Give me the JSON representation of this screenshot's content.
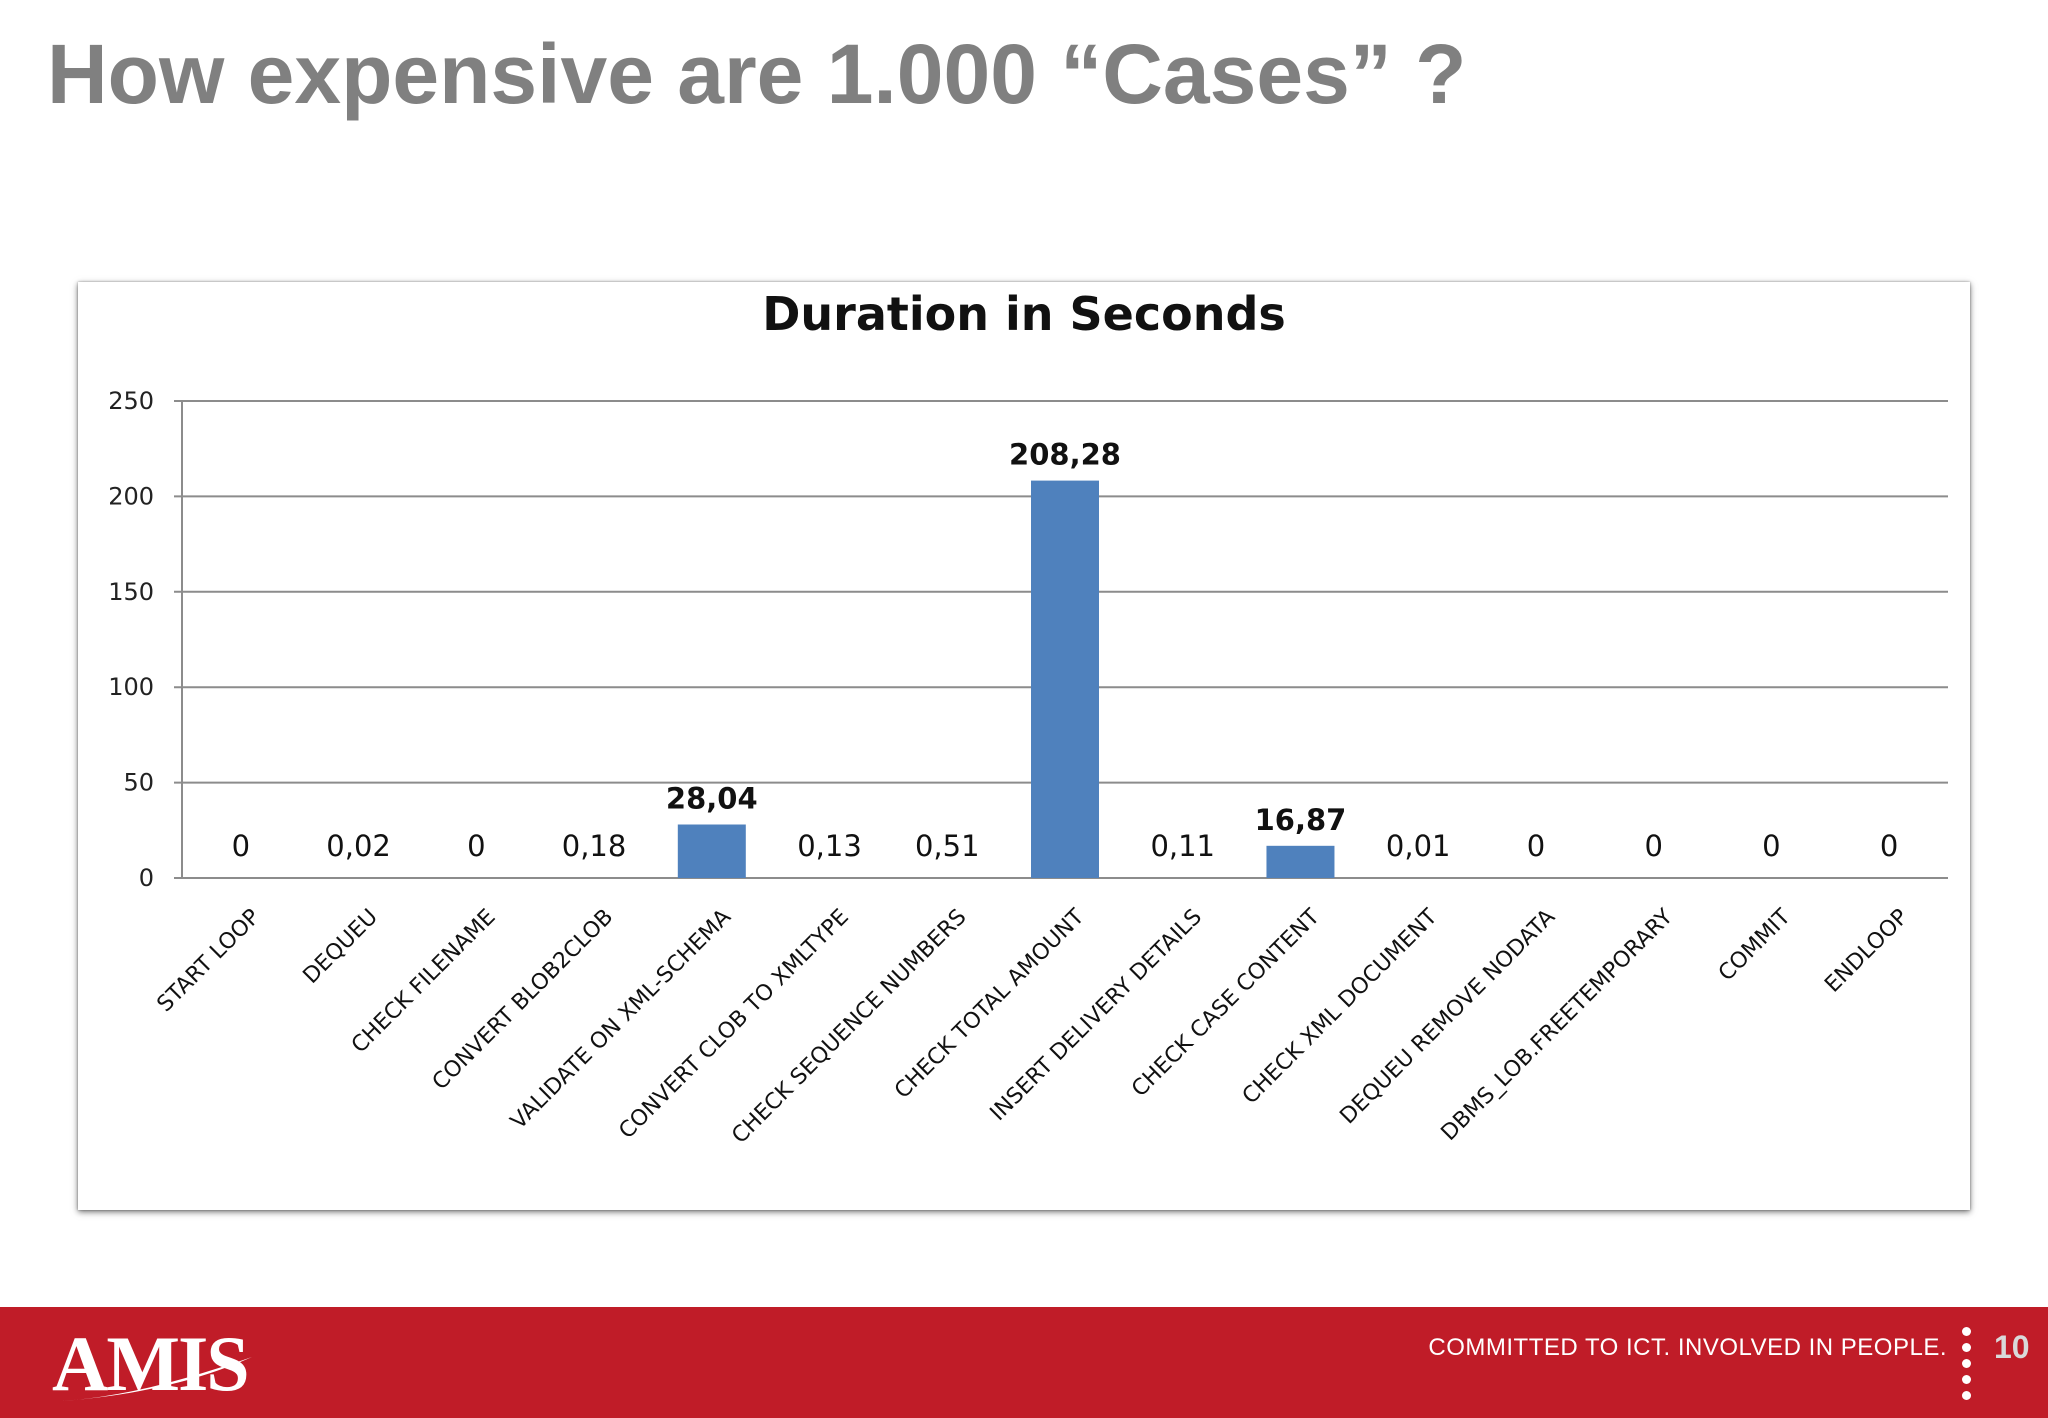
{
  "slide": {
    "title": "How expensive are 1.000 “Cases” ?",
    "page_number": "10"
  },
  "footer": {
    "logo_text": "AMIS",
    "tagline": "COMMITTED TO ICT. INVOLVED IN PEOPLE.",
    "background_color": "#c01c28"
  },
  "chart_data": {
    "type": "bar",
    "title": "Duration in Seconds",
    "xlabel": "",
    "ylabel": "",
    "ylim": [
      0,
      250
    ],
    "yticks": [
      "0",
      "50",
      "100",
      "150",
      "200",
      "250"
    ],
    "grid": true,
    "legend": "none",
    "bar_color": "#4f81bd",
    "categories": [
      "START LOOP",
      "DEQUEU",
      "CHECK FILENAME",
      "CONVERT BLOB2CLOB",
      "VALIDATE ON XML-SCHEMA",
      "CONVERT CLOB TO XMLTYPE",
      "CHECK SEQUENCE NUMBERS",
      "CHECK TOTAL AMOUNT",
      "INSERT DELIVERY  DETAILS",
      "CHECK CASE CONTENT",
      "CHECK XML DOCUMENT",
      "DEQUEU REMOVE NODATA",
      "DBMS_LOB.FREETEMPORARY",
      "COMMIT",
      "ENDLOOP"
    ],
    "values": [
      0,
      0.02,
      0,
      0.18,
      28.04,
      0.13,
      0.51,
      208.28,
      0.11,
      16.87,
      0.01,
      0,
      0,
      0,
      0
    ],
    "data_labels": [
      "0",
      "0,02",
      "0",
      "0,18",
      "28,04",
      "0,13",
      "0,51",
      "208,28",
      "0,11",
      "16,87",
      "0,01",
      "0",
      "0",
      "0",
      "0"
    ],
    "bold_labels": [
      false,
      false,
      false,
      false,
      true,
      false,
      false,
      true,
      false,
      true,
      false,
      false,
      false,
      false,
      false
    ]
  }
}
